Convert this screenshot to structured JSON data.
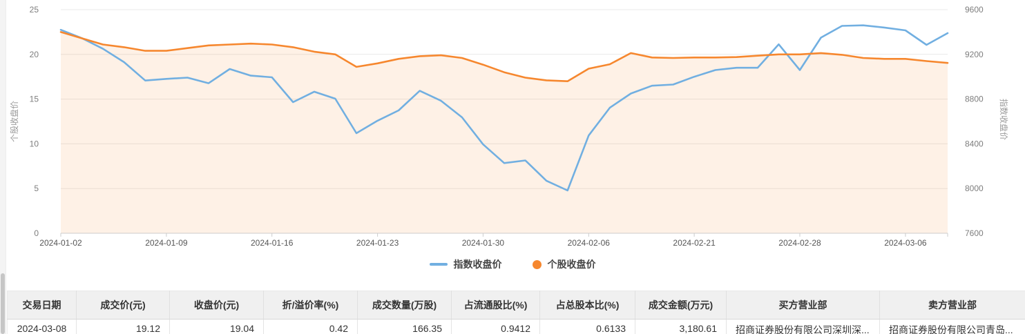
{
  "chart": {
    "left_axis": {
      "name": "个股收盘价",
      "tick_labels": [
        "0",
        "5",
        "10",
        "15",
        "20",
        "25"
      ]
    },
    "right_axis": {
      "name": "指数收盘价",
      "tick_labels": [
        "7600",
        "8000",
        "8400",
        "8800",
        "9200",
        "9600"
      ]
    },
    "x_axis": {
      "tick_labels": [
        "2024-01-02",
        "2024-01-09",
        "2024-01-16",
        "2024-01-23",
        "2024-01-30",
        "2024-02-06",
        "2024-02-21",
        "2024-02-28",
        "2024-03-06"
      ],
      "tick_indices": [
        0,
        5,
        10,
        15,
        20,
        25,
        30,
        35,
        40
      ]
    },
    "legend": {
      "items": [
        {
          "label": "指数收盘价",
          "marker": "line",
          "color": "#71AFE1"
        },
        {
          "label": "个股收盘价",
          "marker": "circle",
          "color": "#F6872E"
        }
      ]
    }
  },
  "chart_data": {
    "type": "line",
    "title": "",
    "xlabel": "",
    "left_ylabel": "个股收盘价",
    "right_ylabel": "指数收盘价",
    "left_ylim": [
      0,
      25
    ],
    "right_ylim": [
      7600,
      9600
    ],
    "grid": true,
    "legend_position": "bottom",
    "x": [
      "2024-01-02",
      "2024-01-03",
      "2024-01-04",
      "2024-01-05",
      "2024-01-08",
      "2024-01-09",
      "2024-01-10",
      "2024-01-11",
      "2024-01-12",
      "2024-01-15",
      "2024-01-16",
      "2024-01-17",
      "2024-01-18",
      "2024-01-19",
      "2024-01-22",
      "2024-01-23",
      "2024-01-24",
      "2024-01-25",
      "2024-01-26",
      "2024-01-29",
      "2024-01-30",
      "2024-01-31",
      "2024-02-01",
      "2024-02-02",
      "2024-02-05",
      "2024-02-06",
      "2024-02-07",
      "2024-02-08",
      "2024-02-19",
      "2024-02-20",
      "2024-02-21",
      "2024-02-22",
      "2024-02-23",
      "2024-02-26",
      "2024-02-27",
      "2024-02-28",
      "2024-02-29",
      "2024-03-01",
      "2024-03-04",
      "2024-03-05",
      "2024-03-06",
      "2024-03-07",
      "2024-03-08"
    ],
    "series": [
      {
        "name": "指数收盘价",
        "yaxis": "right",
        "color": "#71AFE1",
        "values": [
          9420,
          9345,
          9250,
          9130,
          8966,
          8981,
          8992,
          8942,
          9069,
          9010,
          8995,
          8773,
          8866,
          8804,
          8495,
          8607,
          8699,
          8874,
          8786,
          8637,
          8395,
          8228,
          8251,
          8070,
          7983,
          8475,
          8723,
          8850,
          8920,
          8930,
          9000,
          9060,
          9080,
          9080,
          9290,
          9060,
          9350,
          9455,
          9460,
          9440,
          9415,
          9285,
          9390
        ]
      },
      {
        "name": "个股收盘价",
        "yaxis": "left",
        "color": "#F6872E",
        "area_fill": "rgba(247,139,50,0.12)",
        "values": [
          22.5,
          21.8,
          21.1,
          20.8,
          20.4,
          20.4,
          20.7,
          21.0,
          21.1,
          21.2,
          21.1,
          20.8,
          20.3,
          20.0,
          18.6,
          19.0,
          19.5,
          19.8,
          19.9,
          19.6,
          18.85,
          18.0,
          17.4,
          17.1,
          17.0,
          18.4,
          18.9,
          20.15,
          19.65,
          19.6,
          19.65,
          19.65,
          19.7,
          19.85,
          20.0,
          20.0,
          20.15,
          19.95,
          19.6,
          19.5,
          19.5,
          19.25,
          19.04
        ]
      }
    ]
  },
  "table": {
    "headers": [
      "交易日期",
      "成交价(元)",
      "收盘价(元)",
      "折/溢价率(%)",
      "成交数量(万股)",
      "占流通股比(%)",
      "占总股本比(%)",
      "成交金额(万元)",
      "买方营业部",
      "卖方营业部"
    ],
    "rows": [
      [
        "2024-03-08",
        "19.12",
        "19.04",
        "0.42",
        "166.35",
        "0.9412",
        "0.6133",
        "3,180.61",
        "招商证券股份有限公司深圳深...",
        "招商证券股份有限公司青岛..."
      ]
    ]
  },
  "colors": {
    "grid_line": "#E9E9E9",
    "axis_line": "#CCCCCC",
    "y_tick_text": "#7D7D7D",
    "x_tick_text": "#555555",
    "axis_name_text": "#9B9B9B",
    "legend_text": "#454545",
    "table_header_bg": "#F0F0F0",
    "table_border": "#E0E0E0",
    "table_text": "#333333",
    "scrollbar_track": "#F4F4F4",
    "scrollbar_thumb": "#C6C6C6"
  }
}
